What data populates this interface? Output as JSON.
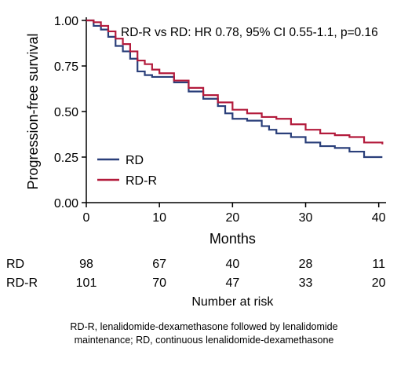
{
  "chart_data": {
    "type": "line",
    "title": "",
    "xlabel": "Months",
    "ylabel": "Progression-free survival",
    "xlim": [
      0,
      41
    ],
    "ylim": [
      0,
      1
    ],
    "x_ticks": [
      0,
      10,
      20,
      30,
      40
    ],
    "x_tick_labels": [
      "0",
      "10",
      "20",
      "30",
      "40"
    ],
    "y_ticks": [
      0,
      0.25,
      0.5,
      0.75,
      1.0
    ],
    "y_tick_labels": [
      "0.00",
      "0.25",
      "0.50",
      "0.75",
      "1.00"
    ],
    "grid": false,
    "legend_position": "lower-left",
    "annotation": "RD-R vs RD: HR 0.78, 95% CI 0.55-1.1, p=0.16",
    "series": [
      {
        "name": "RD",
        "color": "#2a3f7a",
        "x": [
          0,
          1,
          2,
          3,
          4,
          5,
          6,
          7,
          8,
          9,
          10,
          12,
          14,
          16,
          18,
          19,
          20,
          22,
          24,
          25,
          26,
          28,
          30,
          32,
          34,
          36,
          38,
          40.5
        ],
        "y": [
          1.0,
          0.97,
          0.95,
          0.91,
          0.86,
          0.83,
          0.79,
          0.72,
          0.7,
          0.69,
          0.69,
          0.66,
          0.61,
          0.57,
          0.53,
          0.49,
          0.46,
          0.45,
          0.42,
          0.4,
          0.38,
          0.36,
          0.33,
          0.31,
          0.3,
          0.28,
          0.25,
          0.25
        ]
      },
      {
        "name": "RD-R",
        "color": "#b31b3c",
        "x": [
          0,
          1,
          2,
          3,
          4,
          5,
          6,
          7,
          8,
          9,
          10,
          12,
          14,
          16,
          18,
          20,
          22,
          24,
          26,
          28,
          30,
          32,
          34,
          36,
          38,
          40.5
        ],
        "y": [
          1.0,
          0.99,
          0.97,
          0.94,
          0.9,
          0.87,
          0.83,
          0.78,
          0.76,
          0.73,
          0.71,
          0.67,
          0.63,
          0.59,
          0.55,
          0.51,
          0.49,
          0.47,
          0.46,
          0.43,
          0.4,
          0.38,
          0.37,
          0.36,
          0.33,
          0.32
        ]
      }
    ],
    "risk_table": {
      "title": "Number at risk",
      "times": [
        0,
        10,
        20,
        30,
        40
      ],
      "rows": [
        {
          "label": "RD",
          "color": "#2a3f7a",
          "values": [
            "98",
            "67",
            "40",
            "28",
            "11"
          ]
        },
        {
          "label": "RD-R",
          "color": "#b31b3c",
          "values": [
            "101",
            "70",
            "47",
            "33",
            "20"
          ]
        }
      ]
    }
  },
  "footnote": {
    "line1": "RD-R, lenalidomide-dexamethasone followed by lenalidomide",
    "line2": "maintenance; RD, continuous lenalidomide-dexamethasone"
  }
}
